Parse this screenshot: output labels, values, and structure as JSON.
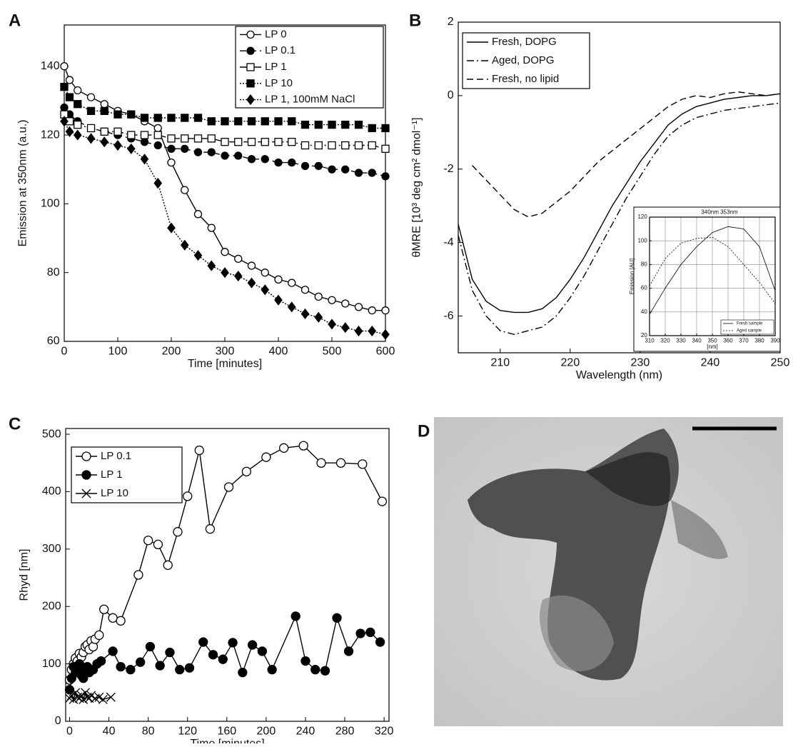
{
  "chart_data": [
    {
      "type": "line",
      "panel": "A",
      "xlabel": "Time [minutes]",
      "ylabel": "Emission at 350nm (a.u.)",
      "xlim": [
        0,
        600
      ],
      "ylim": [
        60,
        152
      ],
      "xticks": [
        0,
        100,
        200,
        300,
        400,
        500,
        600
      ],
      "yticks": [
        60,
        80,
        100,
        120,
        140
      ],
      "x": [
        0,
        10,
        25,
        50,
        75,
        100,
        125,
        150,
        175,
        200,
        225,
        250,
        275,
        300,
        325,
        350,
        375,
        400,
        425,
        450,
        475,
        500,
        525,
        550,
        575,
        600
      ],
      "series": [
        {
          "name": "LP 0",
          "color": "#000000",
          "marker": "open-circle",
          "dash": "solid",
          "values": [
            140,
            136,
            133,
            131,
            129,
            127,
            126,
            124,
            122,
            112,
            104,
            97,
            93,
            86,
            84,
            82,
            80,
            78,
            77,
            75,
            73,
            72,
            71,
            70,
            69,
            69
          ]
        },
        {
          "name": "LP 0.1",
          "color": "#000000",
          "marker": "filled-circle",
          "dash": "dashed",
          "values": [
            128,
            126,
            124,
            122,
            121,
            120,
            119,
            118,
            117,
            116,
            116,
            115,
            115,
            114,
            114,
            113,
            113,
            112,
            112,
            111,
            111,
            110,
            110,
            109,
            109,
            108
          ]
        },
        {
          "name": "LP 1",
          "color": "#000000",
          "marker": "open-square",
          "dash": "dashdot",
          "values": [
            126,
            124,
            123,
            122,
            121,
            121,
            120,
            120,
            120,
            119,
            119,
            119,
            119,
            118,
            118,
            118,
            118,
            118,
            118,
            117,
            117,
            117,
            117,
            117,
            117,
            116
          ]
        },
        {
          "name": "LP 10",
          "color": "#000000",
          "marker": "filled-square",
          "dash": "dotted",
          "values": [
            134,
            131,
            129,
            127,
            127,
            126,
            126,
            125,
            125,
            125,
            125,
            125,
            124,
            124,
            124,
            124,
            124,
            124,
            124,
            123,
            123,
            123,
            123,
            123,
            122,
            122
          ]
        },
        {
          "name": "LP 1, 100mM NaCl",
          "color": "#000000",
          "marker": "filled-diamond",
          "dash": "dotted",
          "values": [
            124,
            121,
            120,
            119,
            118,
            117,
            116,
            113,
            106,
            93,
            88,
            85,
            82,
            80,
            79,
            77,
            75,
            72,
            70,
            68,
            67,
            65,
            64,
            63,
            63,
            62
          ]
        }
      ]
    },
    {
      "type": "line",
      "panel": "B",
      "xlabel": "Wavelength (nm)",
      "ylabel": "θMRE [10³ deg cm² dmol⁻¹]",
      "xlim": [
        204,
        250
      ],
      "ylim": [
        -7,
        2
      ],
      "xticks": [
        210,
        220,
        230,
        240,
        250
      ],
      "yticks": [
        -6,
        -4,
        -2,
        0,
        2
      ],
      "x": [
        204,
        206,
        208,
        210,
        212,
        214,
        216,
        218,
        220,
        222,
        224,
        226,
        228,
        230,
        232,
        234,
        236,
        238,
        240,
        242,
        244,
        246,
        248,
        250
      ],
      "series": [
        {
          "name": "Fresh, DOPG",
          "color": "#000000",
          "marker": "none",
          "dash": "solid",
          "values": [
            -3.5,
            -5.0,
            -5.6,
            -5.85,
            -5.9,
            -5.9,
            -5.8,
            -5.5,
            -5.0,
            -4.4,
            -3.7,
            -3.0,
            -2.4,
            -1.8,
            -1.3,
            -0.8,
            -0.5,
            -0.3,
            -0.2,
            -0.1,
            -0.05,
            0,
            0,
            0.05
          ]
        },
        {
          "name": "Aged, DOPG",
          "color": "#000000",
          "marker": "none",
          "dash": "dashdot",
          "values": [
            -3.8,
            -5.3,
            -6.0,
            -6.4,
            -6.5,
            -6.4,
            -6.3,
            -6.0,
            -5.5,
            -4.9,
            -4.2,
            -3.5,
            -2.8,
            -2.2,
            -1.6,
            -1.1,
            -0.8,
            -0.6,
            -0.5,
            -0.4,
            -0.35,
            -0.3,
            -0.25,
            -0.2
          ]
        },
        {
          "name": "Fresh, no lipid",
          "color": "#000000",
          "marker": "none",
          "dash": "dashed",
          "values": [
            null,
            -1.9,
            -2.3,
            -2.7,
            -3.1,
            -3.3,
            -3.2,
            -2.9,
            -2.6,
            -2.2,
            -1.8,
            -1.5,
            -1.2,
            -0.9,
            -0.6,
            -0.3,
            -0.1,
            0,
            -0.05,
            0.05,
            0.1,
            0.05,
            0,
            0.05
          ]
        }
      ]
    },
    {
      "type": "line",
      "title": "340nm 353nm",
      "xlabel": "[nm]",
      "ylabel": "Emission [AU]",
      "grid": true,
      "xlim": [
        310,
        390
      ],
      "ylim": [
        20,
        120
      ],
      "xticks": [
        310,
        320,
        330,
        340,
        350,
        360,
        370,
        380,
        390
      ],
      "yticks": [
        20,
        40,
        60,
        80,
        100,
        120
      ],
      "x": [
        310,
        320,
        330,
        340,
        350,
        360,
        370,
        380,
        390
      ],
      "series": [
        {
          "name": "Fresh sample",
          "color": "#000000",
          "marker": "none",
          "dash": "solid",
          "values": [
            38,
            60,
            80,
            95,
            107,
            112,
            110,
            95,
            58
          ]
        },
        {
          "name": "Aged sample",
          "color": "#000000",
          "marker": "none",
          "dash": "dotted",
          "values": [
            62,
            85,
            98,
            102,
            103,
            95,
            80,
            65,
            47
          ]
        }
      ]
    },
    {
      "type": "line",
      "panel": "C",
      "xlabel": "Time [minutes]",
      "ylabel": "Rhyd [nm]",
      "xlim": [
        -4,
        325
      ],
      "ylim": [
        0,
        510
      ],
      "xticks": [
        0,
        40,
        80,
        120,
        160,
        200,
        240,
        280,
        320
      ],
      "yticks": [
        0,
        100,
        200,
        300,
        400,
        500
      ],
      "series": [
        {
          "name": "LP 0.1",
          "color": "#000000",
          "marker": "open-circle",
          "dash": "solid",
          "x": [
            0,
            2,
            4,
            6,
            8,
            10,
            12,
            14,
            16,
            18,
            20,
            22,
            24,
            26,
            30,
            35,
            44,
            52,
            70,
            80,
            90,
            100,
            110,
            120,
            132,
            143,
            162,
            180,
            200,
            218,
            238,
            256,
            276,
            298,
            318
          ],
          "values": [
            72,
            90,
            100,
            110,
            105,
            118,
            112,
            120,
            130,
            133,
            125,
            140,
            130,
            143,
            150,
            195,
            180,
            175,
            255,
            315,
            308,
            272,
            330,
            392,
            472,
            335,
            408,
            435,
            460,
            476,
            480,
            450,
            450,
            448,
            383
          ]
        },
        {
          "name": "LP 1",
          "color": "#000000",
          "marker": "filled-circle",
          "dash": "solid",
          "x": [
            0,
            2,
            4,
            6,
            8,
            10,
            12,
            14,
            16,
            18,
            20,
            24,
            28,
            32,
            44,
            52,
            62,
            72,
            82,
            92,
            102,
            112,
            122,
            136,
            146,
            156,
            166,
            176,
            186,
            196,
            206,
            230,
            240,
            250,
            260,
            272,
            284,
            296,
            306,
            316
          ],
          "values": [
            55,
            75,
            95,
            85,
            90,
            100,
            80,
            75,
            88,
            95,
            85,
            90,
            100,
            105,
            122,
            95,
            90,
            103,
            130,
            97,
            120,
            90,
            93,
            138,
            116,
            108,
            137,
            85,
            133,
            122,
            90,
            183,
            105,
            90,
            88,
            180,
            122,
            153,
            155,
            138
          ]
        },
        {
          "name": "LP 10",
          "color": "#000000",
          "marker": "x",
          "dash": "solid",
          "x": [
            0,
            2,
            4,
            6,
            8,
            10,
            12,
            14,
            16,
            18,
            20,
            22,
            26,
            30,
            34,
            42
          ],
          "values": [
            40,
            45,
            38,
            50,
            42,
            40,
            45,
            38,
            50,
            42,
            40,
            45,
            40,
            42,
            38,
            42
          ]
        }
      ]
    }
  ],
  "image_panel": {
    "label": "D"
  }
}
